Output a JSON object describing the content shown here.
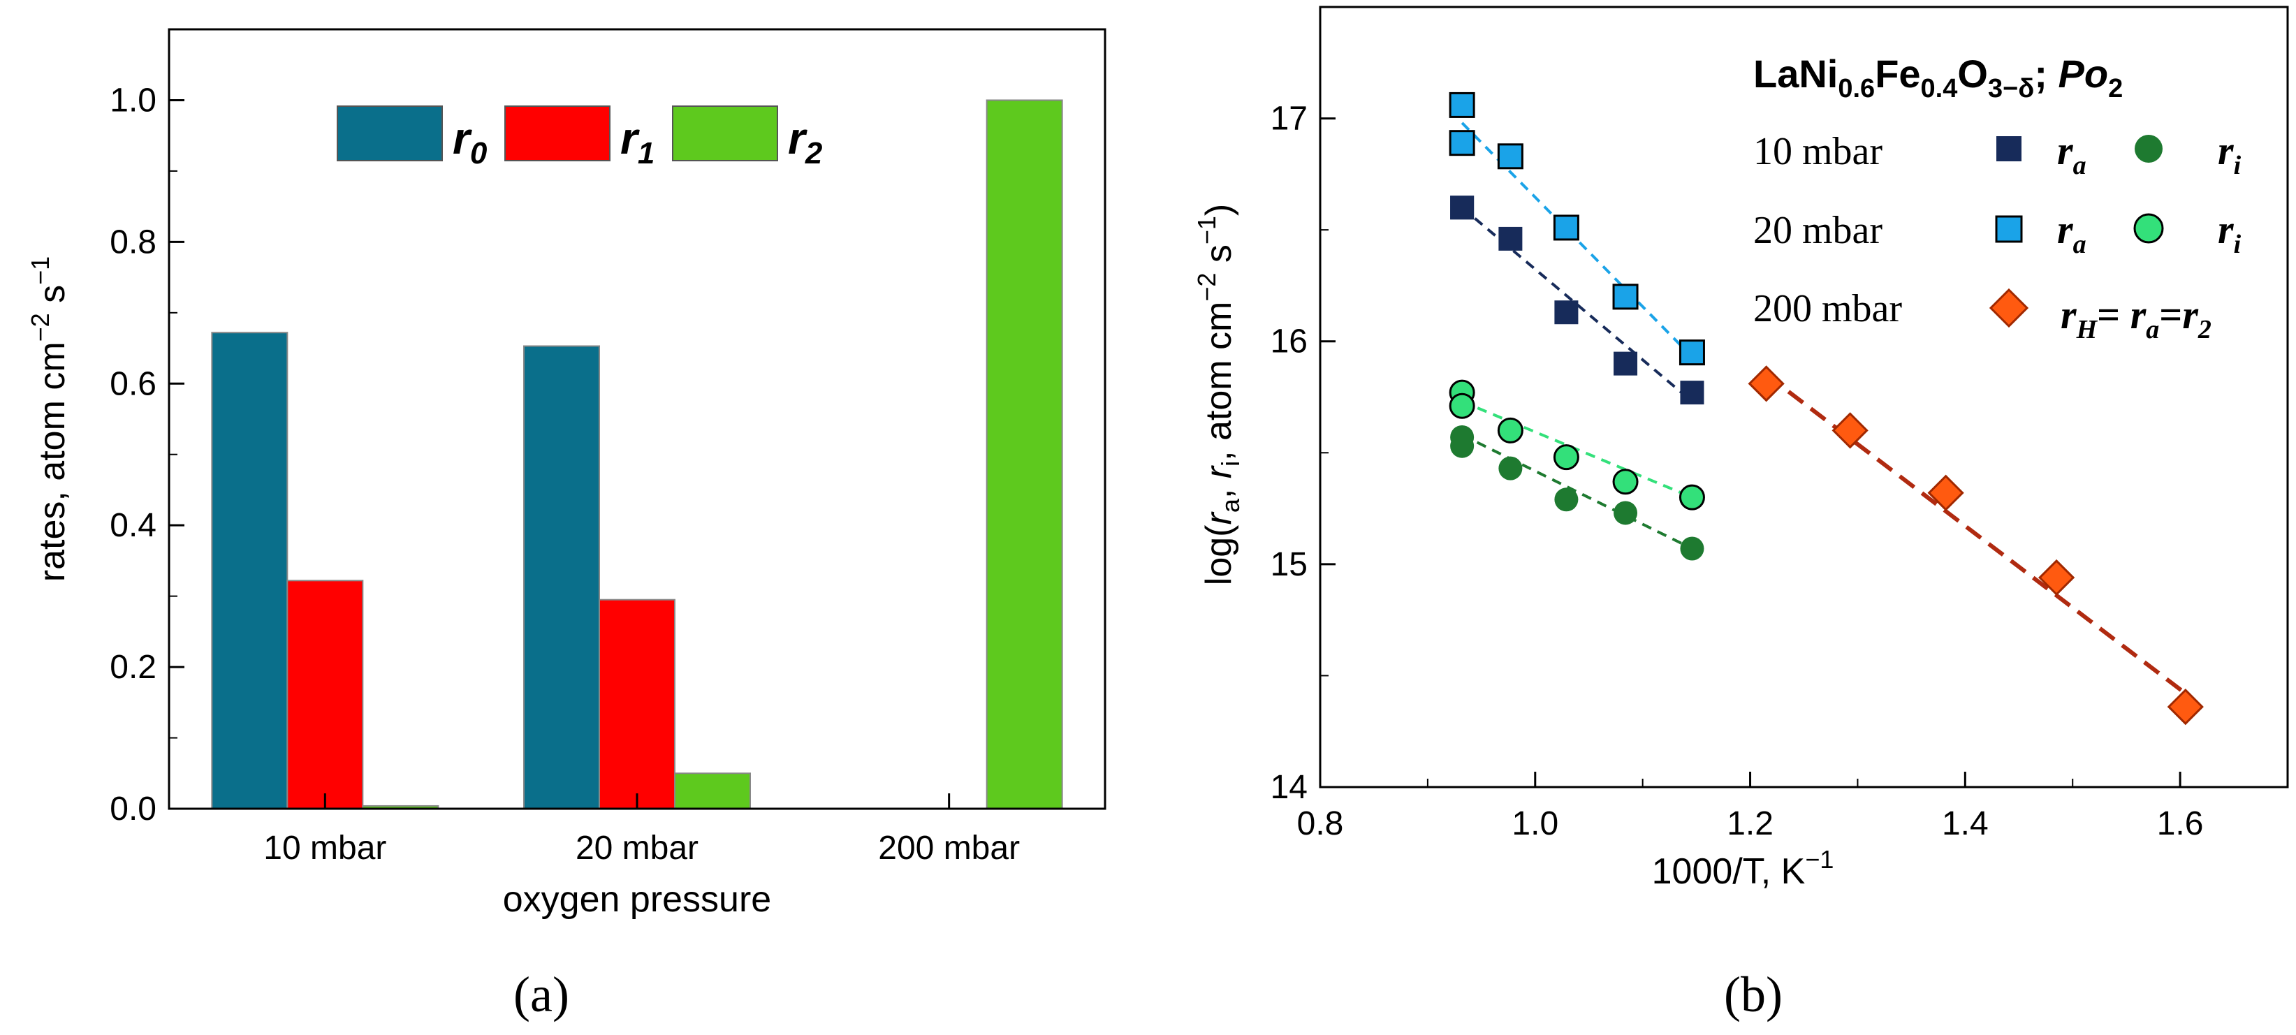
{
  "chart_data": [
    {
      "type": "bar",
      "panel": "(a)",
      "title": "",
      "xlabel": "oxygen pressure",
      "ylabel": "rates, atom cm",
      "ylabel_exp1": "−2",
      "ylabel_mid": " s",
      "ylabel_exp2": "−1",
      "ylim": [
        0,
        1.1
      ],
      "yticks": [
        "0.0",
        "0.2",
        "0.4",
        "0.6",
        "0.8",
        "1.0"
      ],
      "ytick_values": [
        0,
        0.2,
        0.4,
        0.6,
        0.8,
        1.0
      ],
      "categories": [
        "10 mbar",
        "20 mbar",
        "200 mbar"
      ],
      "legend_position": "top",
      "series": [
        {
          "name": "r",
          "sub": "0",
          "color": "#0a6f8b",
          "values": [
            0.672,
            0.653,
            0
          ]
        },
        {
          "name": "r",
          "sub": "1",
          "color": "#ff0000",
          "values": [
            0.322,
            0.295,
            0
          ]
        },
        {
          "name": "r",
          "sub": "2",
          "color": "#5ec91e",
          "values": [
            0.004,
            0.05,
            1.0
          ]
        }
      ]
    },
    {
      "type": "scatter",
      "panel": "(b)",
      "xlabel": "1000/T, K",
      "xlabel_exp": "−1",
      "ylabel_parts": [
        "log(",
        "r",
        "a",
        ", ",
        "r",
        "i",
        ", atom cm",
        "−2",
        " s",
        "−1",
        ")"
      ],
      "xlim": [
        0.8,
        1.7
      ],
      "ylim": [
        14,
        17.5
      ],
      "xticks": [
        "0.8",
        "1.0",
        "1.2",
        "1.4",
        "1.6"
      ],
      "xtick_values": [
        0.8,
        1.0,
        1.2,
        1.4,
        1.6
      ],
      "yticks": [
        "14",
        "15",
        "16",
        "17"
      ],
      "ytick_values": [
        14,
        15,
        16,
        17
      ],
      "legend_title": {
        "main": "LaNi",
        "s1": "0.6",
        "m2": "Fe",
        "s2": "0.4",
        "m3": "O",
        "s3": "3−δ",
        "m4": "; ",
        "po": "Po",
        "s4": "2"
      },
      "legend_rows": [
        {
          "label": "10 mbar",
          "items": [
            "r",
            "a",
            "r",
            "i"
          ]
        },
        {
          "label": "20 mbar",
          "items": [
            "r",
            "a",
            "r",
            "i"
          ]
        },
        {
          "label": "200 mbar",
          "items": [
            "r",
            "H",
            "= ",
            "r",
            "a",
            "=",
            "r",
            "2"
          ]
        }
      ],
      "series": [
        {
          "name": "10 mbar r_a",
          "marker": "square",
          "color": "#172b5a",
          "x": [
            0.932,
            0.932,
            0.977,
            1.029,
            1.084,
            1.146
          ],
          "y": [
            16.6,
            16.6,
            16.46,
            16.13,
            15.9,
            15.77
          ],
          "fit": [
            [
              0.932,
              16.6
            ],
            [
              1.146,
              15.73
            ]
          ]
        },
        {
          "name": "20 mbar r_a",
          "marker": "square",
          "color": "#1aa3e8",
          "x": [
            0.932,
            0.932,
            0.977,
            1.029,
            1.084,
            1.146
          ],
          "y": [
            17.06,
            16.89,
            16.83,
            16.51,
            16.2,
            15.95
          ],
          "fit": [
            [
              0.932,
              16.98
            ],
            [
              1.146,
              15.93
            ]
          ]
        },
        {
          "name": "10 mbar r_i",
          "marker": "circle",
          "color": "#1e7a30",
          "x": [
            0.932,
            0.932,
            0.977,
            1.029,
            1.084,
            1.146
          ],
          "y": [
            15.57,
            15.53,
            15.43,
            15.29,
            15.23,
            15.07
          ],
          "fit": [
            [
              0.932,
              15.58
            ],
            [
              1.146,
              15.07
            ]
          ]
        },
        {
          "name": "20 mbar r_i",
          "marker": "circle",
          "color": "#33e07a",
          "x": [
            0.932,
            0.932,
            0.977,
            1.029,
            1.084,
            1.146
          ],
          "y": [
            15.77,
            15.71,
            15.6,
            15.48,
            15.37,
            15.3
          ],
          "fit": [
            [
              0.932,
              15.73
            ],
            [
              1.146,
              15.3
            ]
          ]
        },
        {
          "name": "200 mbar r_H",
          "marker": "diamond",
          "color": "#ff5a10",
          "x": [
            1.215,
            1.293,
            1.382,
            1.485,
            1.605
          ],
          "y": [
            15.81,
            15.6,
            15.32,
            14.94,
            14.36
          ],
          "fit": [
            [
              1.215,
              15.85
            ],
            [
              1.605,
              14.42
            ]
          ],
          "fit_color": "#b02a10"
        }
      ]
    }
  ],
  "captions": {
    "a": "(a)",
    "b": "(b)"
  }
}
